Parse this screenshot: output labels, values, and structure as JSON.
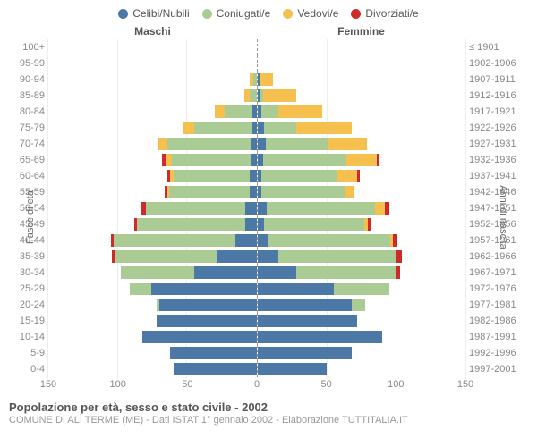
{
  "legend": [
    {
      "label": "Celibi/Nubili",
      "color": "#4b78a5"
    },
    {
      "label": "Coniugati/e",
      "color": "#abcb95"
    },
    {
      "label": "Vedovi/e",
      "color": "#f5c04e"
    },
    {
      "label": "Divorziati/e",
      "color": "#cd2a29"
    }
  ],
  "headers": {
    "male": "Maschi",
    "female": "Femmine"
  },
  "axis_labels": {
    "left": "Fasce di età",
    "right": "Anni di nascita"
  },
  "colors": {
    "celibi": "#4b78a5",
    "coniugati": "#abcb95",
    "vedovi": "#f5c04e",
    "divorziati": "#cd2a29",
    "grid": "#eeeeee",
    "text": "#888888",
    "axis_divider": "#999999",
    "background": "#ffffff"
  },
  "xaxis": {
    "max": 150,
    "ticks": [
      0,
      50,
      100,
      150
    ]
  },
  "age_bands": [
    {
      "age": "100+",
      "birth": "≤ 1901",
      "m": {
        "c": 0,
        "k": 0,
        "v": 0,
        "d": 0
      },
      "f": {
        "c": 0,
        "k": 0,
        "v": 0,
        "d": 0
      }
    },
    {
      "age": "95-99",
      "birth": "1902-1906",
      "m": {
        "c": 0,
        "k": 0,
        "v": 0,
        "d": 0
      },
      "f": {
        "c": 0,
        "k": 0,
        "v": 0,
        "d": 0
      }
    },
    {
      "age": "90-94",
      "birth": "1907-1911",
      "m": {
        "c": 0,
        "k": 2,
        "v": 3,
        "d": 0
      },
      "f": {
        "c": 2,
        "k": 0,
        "v": 9,
        "d": 0
      }
    },
    {
      "age": "85-89",
      "birth": "1912-1916",
      "m": {
        "c": 0,
        "k": 5,
        "v": 4,
        "d": 0
      },
      "f": {
        "c": 2,
        "k": 2,
        "v": 24,
        "d": 0
      }
    },
    {
      "age": "80-84",
      "birth": "1917-1921",
      "m": {
        "c": 3,
        "k": 20,
        "v": 7,
        "d": 0
      },
      "f": {
        "c": 3,
        "k": 12,
        "v": 32,
        "d": 0
      }
    },
    {
      "age": "75-79",
      "birth": "1922-1926",
      "m": {
        "c": 3,
        "k": 42,
        "v": 8,
        "d": 0
      },
      "f": {
        "c": 5,
        "k": 23,
        "v": 40,
        "d": 0
      }
    },
    {
      "age": "70-74",
      "birth": "1927-1931",
      "m": {
        "c": 4,
        "k": 60,
        "v": 7,
        "d": 0
      },
      "f": {
        "c": 6,
        "k": 45,
        "v": 28,
        "d": 0
      }
    },
    {
      "age": "65-69",
      "birth": "1932-1936",
      "m": {
        "c": 4,
        "k": 57,
        "v": 4,
        "d": 3
      },
      "f": {
        "c": 4,
        "k": 60,
        "v": 22,
        "d": 2
      }
    },
    {
      "age": "60-64",
      "birth": "1937-1941",
      "m": {
        "c": 5,
        "k": 55,
        "v": 2,
        "d": 2
      },
      "f": {
        "c": 3,
        "k": 55,
        "v": 14,
        "d": 2
      }
    },
    {
      "age": "55-59",
      "birth": "1942-1946",
      "m": {
        "c": 5,
        "k": 58,
        "v": 1,
        "d": 2
      },
      "f": {
        "c": 3,
        "k": 60,
        "v": 7,
        "d": 0
      }
    },
    {
      "age": "50-54",
      "birth": "1947-1951",
      "m": {
        "c": 8,
        "k": 72,
        "v": 0,
        "d": 3
      },
      "f": {
        "c": 7,
        "k": 78,
        "v": 7,
        "d": 3
      }
    },
    {
      "age": "45-49",
      "birth": "1952-1956",
      "m": {
        "c": 8,
        "k": 78,
        "v": 0,
        "d": 2
      },
      "f": {
        "c": 5,
        "k": 72,
        "v": 3,
        "d": 2
      }
    },
    {
      "age": "40-44",
      "birth": "1957-1961",
      "m": {
        "c": 15,
        "k": 88,
        "v": 0,
        "d": 2
      },
      "f": {
        "c": 8,
        "k": 88,
        "v": 2,
        "d": 3
      }
    },
    {
      "age": "35-39",
      "birth": "1962-1966",
      "m": {
        "c": 28,
        "k": 74,
        "v": 0,
        "d": 2
      },
      "f": {
        "c": 15,
        "k": 85,
        "v": 0,
        "d": 4
      }
    },
    {
      "age": "30-34",
      "birth": "1967-1971",
      "m": {
        "c": 45,
        "k": 53,
        "v": 0,
        "d": 0
      },
      "f": {
        "c": 28,
        "k": 72,
        "v": 0,
        "d": 3
      }
    },
    {
      "age": "25-29",
      "birth": "1972-1976",
      "m": {
        "c": 76,
        "k": 15,
        "v": 0,
        "d": 0
      },
      "f": {
        "c": 55,
        "k": 40,
        "v": 0,
        "d": 0
      }
    },
    {
      "age": "20-24",
      "birth": "1977-1981",
      "m": {
        "c": 70,
        "k": 2,
        "v": 0,
        "d": 0
      },
      "f": {
        "c": 68,
        "k": 10,
        "v": 0,
        "d": 0
      }
    },
    {
      "age": "15-19",
      "birth": "1982-1986",
      "m": {
        "c": 72,
        "k": 0,
        "v": 0,
        "d": 0
      },
      "f": {
        "c": 72,
        "k": 0,
        "v": 0,
        "d": 0
      }
    },
    {
      "age": "10-14",
      "birth": "1987-1991",
      "m": {
        "c": 82,
        "k": 0,
        "v": 0,
        "d": 0
      },
      "f": {
        "c": 90,
        "k": 0,
        "v": 0,
        "d": 0
      }
    },
    {
      "age": "5-9",
      "birth": "1992-1996",
      "m": {
        "c": 62,
        "k": 0,
        "v": 0,
        "d": 0
      },
      "f": {
        "c": 68,
        "k": 0,
        "v": 0,
        "d": 0
      }
    },
    {
      "age": "0-4",
      "birth": "1997-2001",
      "m": {
        "c": 60,
        "k": 0,
        "v": 0,
        "d": 0
      },
      "f": {
        "c": 50,
        "k": 0,
        "v": 0,
        "d": 0
      }
    }
  ],
  "footer": {
    "title": "Popolazione per età, sesso e stato civile - 2002",
    "subtitle": "COMUNE DI ALÌ TERME (ME) - Dati ISTAT 1° gennaio 2002 - Elaborazione TUTTITALIA.IT"
  }
}
